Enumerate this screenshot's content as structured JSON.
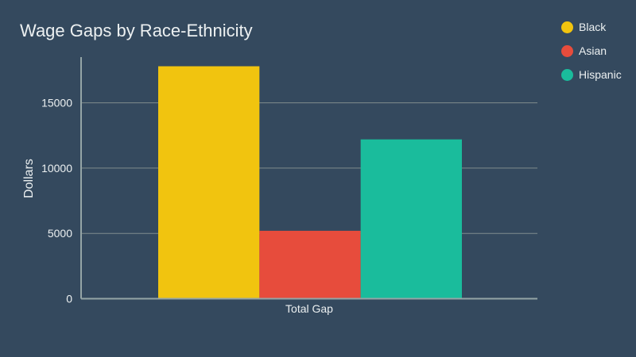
{
  "colors": {
    "background": "#34495e",
    "text": "#ecf0f1",
    "grid": "#7f8c8d",
    "axis": "#95a5a6"
  },
  "chart_data": {
    "type": "bar",
    "title": "Wage Gaps by Race-Ethnicity",
    "xlabel": "",
    "ylabel": "Dollars",
    "categories": [
      "Total Gap"
    ],
    "series": [
      {
        "name": "Black",
        "values": [
          17800
        ],
        "color": "#f1c40f"
      },
      {
        "name": "Asian",
        "values": [
          5200
        ],
        "color": "#e74c3c"
      },
      {
        "name": "Hispanic",
        "values": [
          12200
        ],
        "color": "#1abc9c"
      }
    ],
    "yticks": [
      0,
      5000,
      10000,
      15000
    ],
    "ylim": [
      0,
      18500
    ],
    "grid": true,
    "legend_position": "right"
  }
}
